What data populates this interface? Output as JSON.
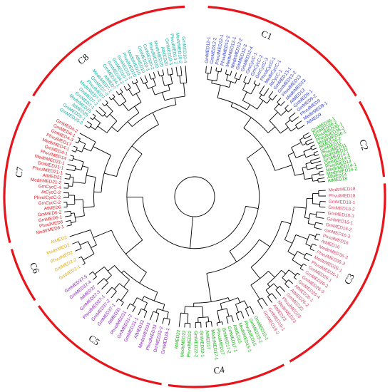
{
  "colors": {
    "C1": "#2d3bd1",
    "C2": "#11b011",
    "C3": "#d8486a",
    "C4": "#11b011",
    "C5": "#8a1fc4",
    "C6": "#e0ac10",
    "C7": "#e3202a",
    "C8": "#14b0a0",
    "clade_arc": "#e6141b",
    "branch": "#000000"
  },
  "clades": [
    {
      "id": "C1",
      "label": "C1",
      "leaves": [
        "GmMED12-1",
        "GmMED12-2",
        "PhvulMED12-1",
        "PhvulMED12-2",
        "MedtrMED12-1",
        "MedtrMED12-2",
        "GmMED12-3",
        "GmMED12-4",
        "GmCycC-1",
        "GmCycC-2",
        "GmCycC-3",
        "PhvulCycC-1",
        "MedtrCycC-1",
        "AtCycC-1",
        "GmMED13-1",
        "GmMED13-2",
        "PhvulMED13",
        "MedtrMED13",
        "AtMED13",
        "GmMED9-1",
        "GmMED9-2",
        "PhvulMED9",
        "MedtrMED9-1",
        "AtMED9"
      ]
    },
    {
      "id": "C2",
      "label": "C2",
      "leaves": [
        "GmMED36-1",
        "GmMED36-2",
        "PhvulMED36-1",
        "PhvulMED36-2",
        "MedtrMED36-1",
        "AtMED36-2",
        "GmMED11",
        "PhvulMED11",
        "MedtrMED11",
        "GmMED14-1",
        "GmMED14-2",
        "PhvulMED14",
        "MedtrMED14-1",
        "MedtrMED14-2",
        "AtMED14",
        "AtMED18"
      ]
    },
    {
      "id": "C3",
      "label": "C3",
      "leaves": [
        "MedtrMED18",
        "PhvulMED18",
        "GmMED18-1",
        "GmMED18-2",
        "GmMED18-3",
        "GmMED16-1",
        "GmMED16-2",
        "GmMED16-3",
        "PhvulMED16",
        "AtMED16",
        "MedtrMED36-3",
        "PhvulMED36-3",
        "MedtrMED26-1",
        "PhvulMED26-1",
        "GmMED26-1",
        "GmMED26-2",
        "GmMED26-3",
        "GmMED26-4",
        "AtMED26-1",
        "AtMED26-2",
        "GmMED23",
        "PhvulMED23",
        "MedtrMED23",
        "AtMED23",
        "GmMED19-1",
        "GmMED19-2"
      ]
    },
    {
      "id": "C4",
      "label": "C4",
      "leaves": [
        "GmMED15-1",
        "GmMED15-2",
        "PhvulMED15",
        "MedtrMED15-1",
        "AtMED15",
        "GmMED17-1",
        "GmMED17-2",
        "PhvulMED17",
        "MedtrMED17-1",
        "AtMED17",
        "GmMED22-1",
        "GmMED22-2",
        "PhvulMED22",
        "MedtrMED22",
        "AtMED22"
      ]
    },
    {
      "id": "C5",
      "label": "C5",
      "leaves": [
        "GmMED33-1",
        "GmMED33-2",
        "PhvulMED33",
        "MedtrMED33",
        "AtMED33",
        "GmMED31-1",
        "GmMED31-2",
        "PhvulMED31",
        "AtMED31",
        "GmMED37-1",
        "GmMED37-2",
        "PhvulMED37-1",
        "GmMED37-3",
        "AtMED37",
        "GmMED37-4",
        "GmMED37-5"
      ]
    },
    {
      "id": "C6",
      "label": "C6",
      "leaves": [
        "GmMED2-1",
        "GmMED2-2",
        "PhvulMED2",
        "MedtrMED2",
        "AtMED2"
      ]
    },
    {
      "id": "C7",
      "label": "C7",
      "leaves": [
        "MedtrMED6-1",
        "PhvulMED6",
        "GmMED6-1",
        "GmMED6-2",
        "AtMED6",
        "GmCycC-2",
        "PhvulCycC-2",
        "AtCycC-2",
        "GmCycC-4",
        "MedtrMED21-2",
        "AtMED21",
        "PhvulMED21-1",
        "GmMED21-1",
        "MedtrMED21-1",
        "PhvulMED14",
        "GmMED4-1",
        "MedtrMED4-1",
        "PhvulMED17",
        "GmMED4-3",
        "GmMED4-1",
        "GmMED4-2"
      ]
    },
    {
      "id": "C8",
      "label": "C8",
      "leaves": [
        "GmMED25-2",
        "GmMED25-1",
        "AtMED25",
        "MedtrMED25",
        "GmMED7-1",
        "GmMED7-2",
        "MedtrMED7-2",
        "PhvulMED7",
        "GmMED7-3",
        "MedtrMED7-1",
        "AtMED7",
        "GmMED34-1",
        "GmMED34-2",
        "GmMED10-1",
        "GmMED10-2",
        "PhvulMED10",
        "MedtrMED10",
        "AtMED10",
        "GmMED20-1",
        "GmMED20-2",
        "PhvulMED20",
        "MedtrMED20",
        "AtMED20",
        "GmMED10-3",
        "PhvulMED10-2",
        "MedtrMED10-2",
        "GmMED10-4"
      ]
    }
  ]
}
